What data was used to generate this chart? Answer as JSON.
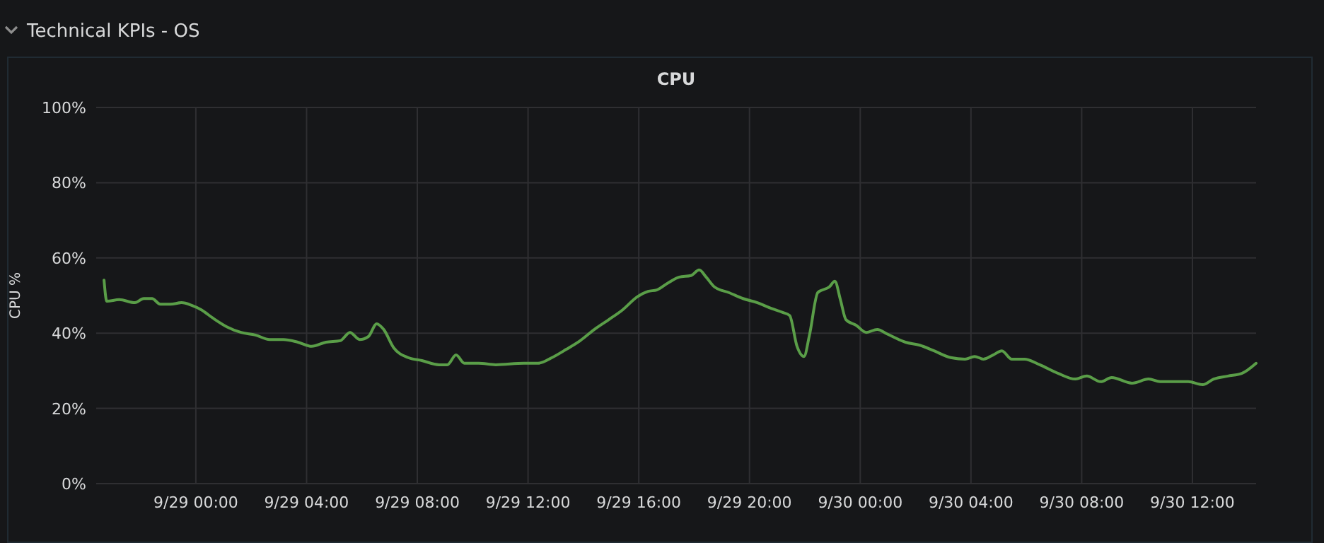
{
  "chart_data": {
    "type": "line",
    "subtitle": "Technical KPIs - OS",
    "title": "CPU",
    "ylabel": "CPU %",
    "xlim": [
      "--09-28T20:24",
      "--09-30T14:18"
    ],
    "xticks": [
      {
        "value": "--09-29T00:00",
        "label": "9/29 00:00"
      },
      {
        "value": "--09-29T04:00",
        "label": "9/29 04:00"
      },
      {
        "value": "--09-29T08:00",
        "label": "9/29 08:00"
      },
      {
        "value": "--09-29T12:00",
        "label": "9/29 12:00"
      },
      {
        "value": "--09-29T16:00",
        "label": "9/29 16:00"
      },
      {
        "value": "--09-29T20:00",
        "label": "9/29 20:00"
      },
      {
        "value": "--09-30T00:00",
        "label": "9/30 00:00"
      },
      {
        "value": "--09-30T04:00",
        "label": "9/30 04:00"
      },
      {
        "value": "--09-30T08:00",
        "label": "9/30 08:00"
      },
      {
        "value": "--09-30T12:00",
        "label": "9/30 12:00"
      }
    ],
    "ylim": [
      0,
      100
    ],
    "yticks": [
      {
        "value": 0,
        "label": "0%"
      },
      {
        "value": 20,
        "label": "20%"
      },
      {
        "value": 40,
        "label": "40%"
      },
      {
        "value": 60,
        "label": "60%"
      },
      {
        "value": 80,
        "label": "80%"
      },
      {
        "value": 100,
        "label": "100%"
      }
    ],
    "grid": true,
    "series": [
      {
        "color": "#5a9e48",
        "x": [
          "--09-28T20:41",
          "--09-28T20:47",
          "--09-28T21:14",
          "--09-28T21:48",
          "--09-28T22:07",
          "--09-28T22:25",
          "--09-28T22:43",
          "--09-28T23:05",
          "--09-28T23:29",
          "--09-28T23:51",
          "--09-29T00:12",
          "--09-29T00:37",
          "--09-29T01:07",
          "--09-29T01:38",
          "--09-29T02:09",
          "--09-29T02:40",
          "--09-29T03:10",
          "--09-29T03:41",
          "--09-29T04:11",
          "--09-29T04:42",
          "--09-29T05:13",
          "--09-29T05:34",
          "--09-29T05:55",
          "--09-29T06:14",
          "--09-29T06:32",
          "--09-29T06:47",
          "--09-29T07:09",
          "--09-29T07:40",
          "--09-29T08:10",
          "--09-29T08:47",
          "--09-29T09:05",
          "--09-29T09:24",
          "--09-29T09:42",
          "--09-29T10:13",
          "--09-29T10:50",
          "--09-29T11:51",
          "--09-29T12:22",
          "--09-29T12:52",
          "--09-29T13:23",
          "--09-29T13:53",
          "--09-29T14:24",
          "--09-29T14:55",
          "--09-29T15:25",
          "--09-29T15:56",
          "--09-29T16:20",
          "--09-29T16:39",
          "--09-29T17:04",
          "--09-29T17:28",
          "--09-29T17:53",
          "--09-29T18:11",
          "--09-29T18:26",
          "--09-29T18:44",
          "--09-29T19:15",
          "--09-29T19:46",
          "--09-29T20:17",
          "--09-29T20:47",
          "--09-29T21:12",
          "--09-29T21:27",
          "--09-29T21:43",
          "--09-29T21:58",
          "--09-29T22:10",
          "--09-29T22:28",
          "--09-29T22:53",
          "--09-29T23:05",
          "--09-29T23:17",
          "--09-29T23:29",
          "--09-29T23:51",
          "--09-30T00:13",
          "--09-30T00:37",
          "--09-30T00:58",
          "--09-30T01:38",
          "--09-30T02:09",
          "--09-30T02:40",
          "--09-30T03:16",
          "--09-30T03:47",
          "--09-30T04:08",
          "--09-30T04:27",
          "--09-30T04:48",
          "--09-30T05:07",
          "--09-30T05:28",
          "--09-30T05:56",
          "--09-30T06:29",
          "--09-30T07:09",
          "--09-30T07:46",
          "--09-30T08:11",
          "--09-30T08:41",
          "--09-30T09:05",
          "--09-30T09:49",
          "--09-30T10:25",
          "--09-30T10:50",
          "--09-30T11:51",
          "--09-30T12:22",
          "--09-30T12:46",
          "--09-30T13:17",
          "--09-30T13:47",
          "--09-30T14:18"
        ],
        "values": [
          54.1,
          48.5,
          48.9,
          48.1,
          49.2,
          49.2,
          47.7,
          47.7,
          48.1,
          47.4,
          46.2,
          44.0,
          41.7,
          40.2,
          39.5,
          38.3,
          38.3,
          37.6,
          36.5,
          37.6,
          38.0,
          40.2,
          38.3,
          39.1,
          42.5,
          41.0,
          36.1,
          33.5,
          32.7,
          31.6,
          31.6,
          34.2,
          32.0,
          32.0,
          31.6,
          32.0,
          32.0,
          33.5,
          35.7,
          38.0,
          41.0,
          43.6,
          46.2,
          49.6,
          51.1,
          51.5,
          53.4,
          54.9,
          55.3,
          56.8,
          54.9,
          52.3,
          50.8,
          49.2,
          48.1,
          46.6,
          45.5,
          44.7,
          36.5,
          33.8,
          39.5,
          50.8,
          52.3,
          53.8,
          48.9,
          43.6,
          42.1,
          40.2,
          41.0,
          39.8,
          37.6,
          36.8,
          35.3,
          33.5,
          33.1,
          33.8,
          33.1,
          34.2,
          35.3,
          33.1,
          33.1,
          31.6,
          29.3,
          27.8,
          28.6,
          27.1,
          28.2,
          26.7,
          27.8,
          27.1,
          27.1,
          26.3,
          27.8,
          28.6,
          29.3,
          32.0
        ]
      }
    ]
  }
}
